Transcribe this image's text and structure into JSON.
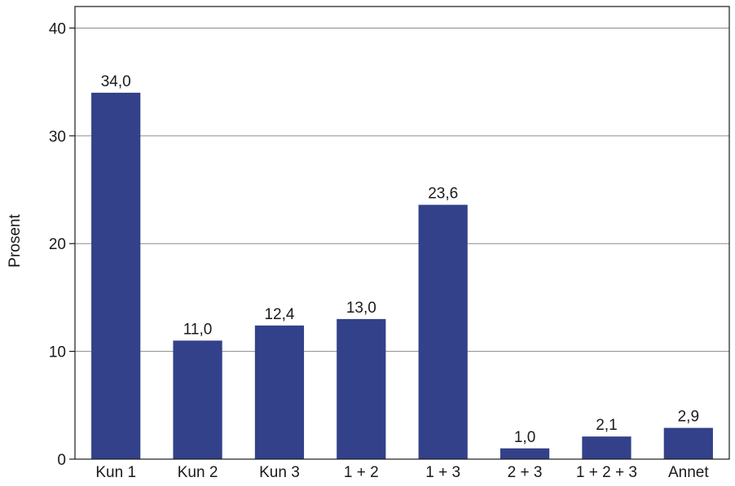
{
  "chart_data": {
    "type": "bar",
    "categories": [
      "Kun 1",
      "Kun 2",
      "Kun 3",
      "1 + 2",
      "1 + 3",
      "2 + 3",
      "1 + 2 + 3",
      "Annet"
    ],
    "values": [
      34.0,
      11.0,
      12.4,
      13.0,
      23.6,
      1.0,
      2.1,
      2.9
    ],
    "value_labels": [
      "34,0",
      "11,0",
      "12,4",
      "13,0",
      "23,6",
      "1,0",
      "2,1",
      "2,9"
    ],
    "title": "",
    "xlabel": "",
    "ylabel": "Prosent",
    "ylim": [
      0,
      42
    ],
    "yticks": [
      0,
      10,
      20,
      30,
      40
    ],
    "ytick_labels": [
      "0",
      "10",
      "20",
      "30",
      "40"
    ],
    "grid": true,
    "legend": "none",
    "bar_color": "#33418a",
    "grid_color": "#8c8c8c"
  }
}
